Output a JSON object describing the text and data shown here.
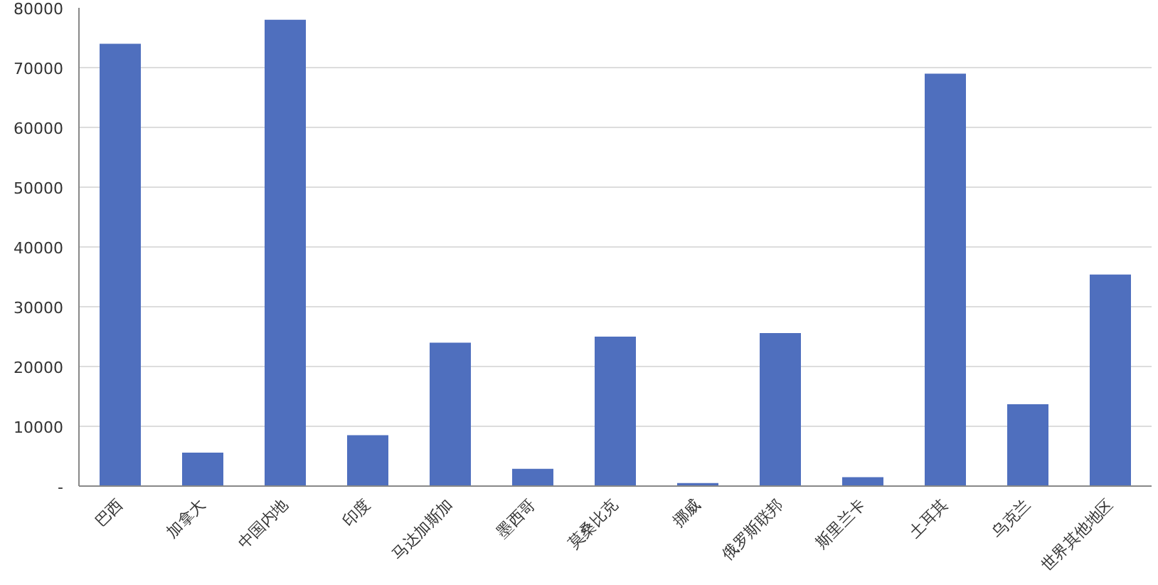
{
  "chart_data": {
    "type": "bar",
    "categories": [
      "巴西",
      "加拿大",
      "中国内地",
      "印度",
      "马达加斯加",
      "墨西哥",
      "莫桑比克",
      "挪威",
      "俄罗斯联邦",
      "斯里兰卡",
      "土耳其",
      "乌克兰",
      "世界其他地区"
    ],
    "values": [
      74000,
      5600,
      78000,
      8500,
      24000,
      2900,
      25000,
      500,
      25600,
      1500,
      69000,
      13700,
      35400
    ],
    "color": "#4f6fbe",
    "ylim": [
      0,
      80000
    ],
    "yticks": [
      {
        "value": 0,
        "label": "-"
      },
      10000,
      20000,
      30000,
      40000,
      50000,
      60000,
      70000,
      80000
    ],
    "grid": "y"
  }
}
